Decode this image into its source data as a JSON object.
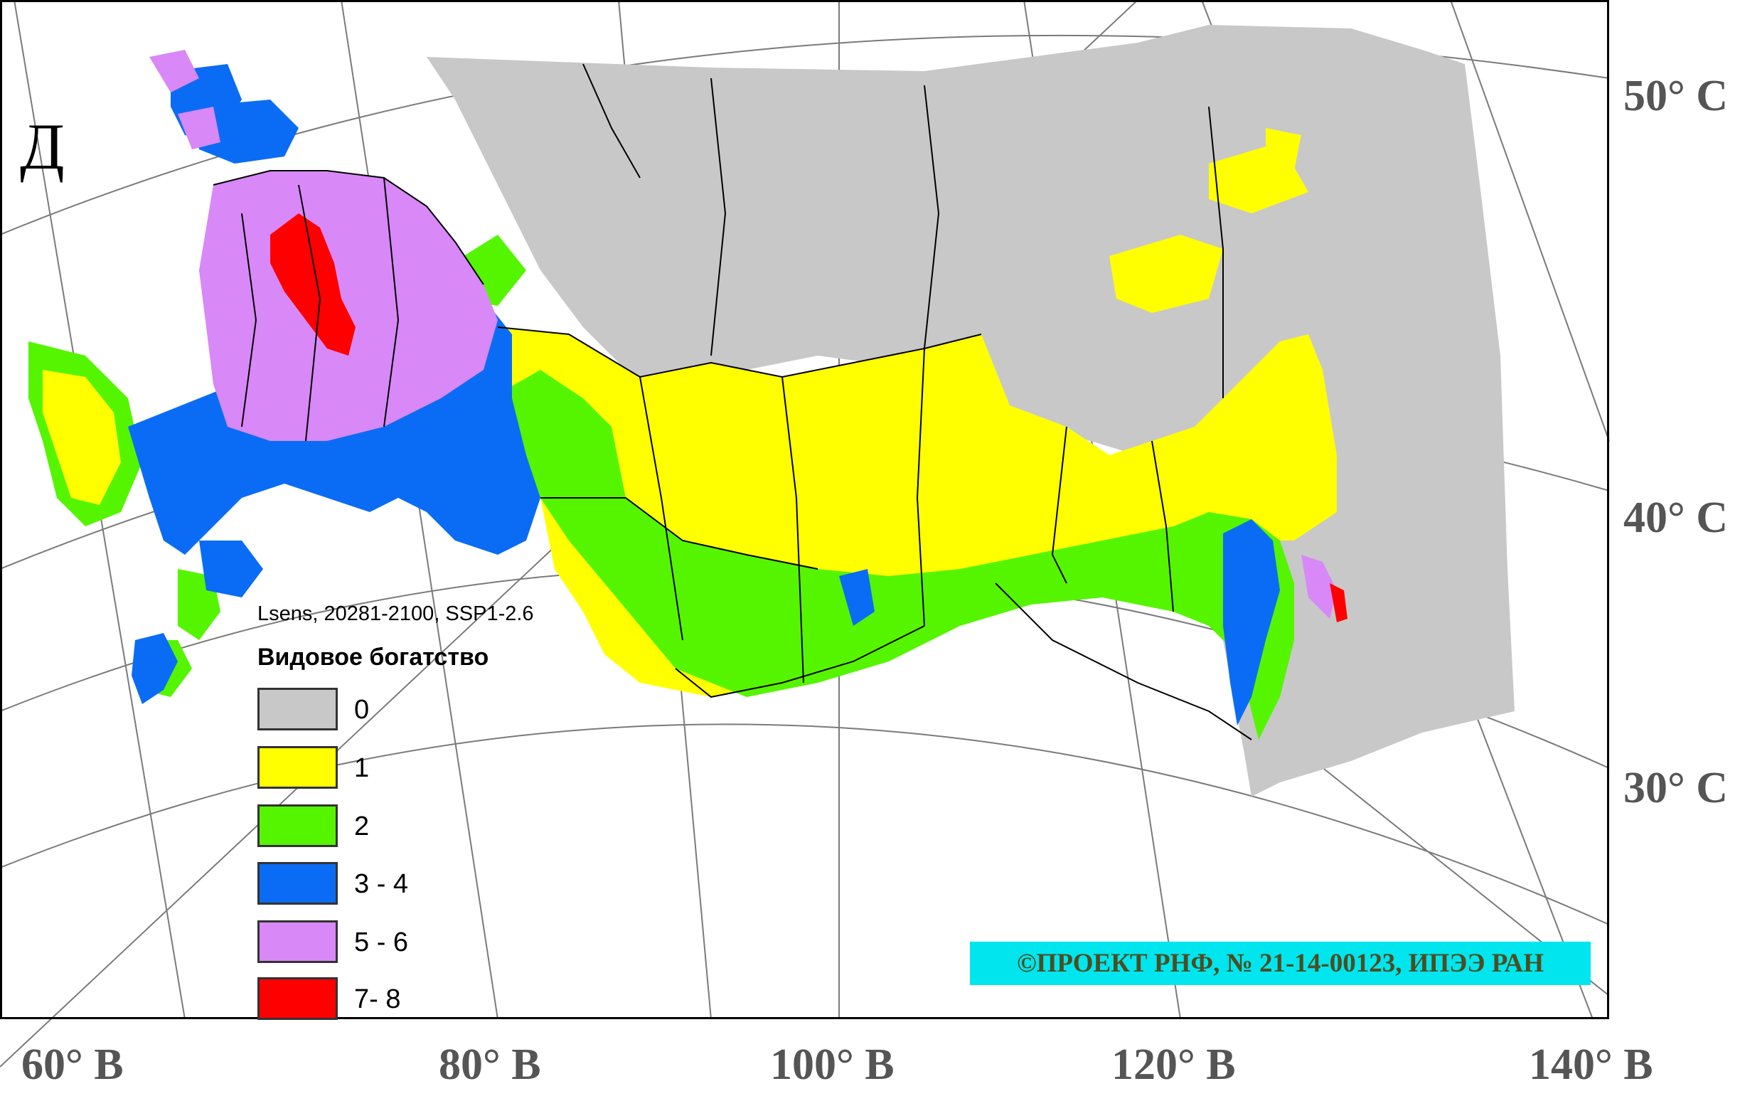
{
  "panel_letter": "Д",
  "legend": {
    "subtitle": "Lsens, 20281-2100, SSP1-2.6",
    "title": "Видовое богатство",
    "items": [
      {
        "label": "0",
        "color": "#c8c8c8"
      },
      {
        "label": "1",
        "color": "#ffff00"
      },
      {
        "label": "2",
        "color": "#55f500"
      },
      {
        "label": "3 - 4",
        "color": "#0a6cf5"
      },
      {
        "label": "5 - 6",
        "color": "#d888f7"
      },
      {
        "label": "7- 8",
        "color": "#ff0000"
      }
    ]
  },
  "latitude_labels": [
    "50° С",
    "40° С",
    "30° С"
  ],
  "longitude_labels": [
    "60° В",
    "80° В",
    "100° В",
    "120° В",
    "140° В"
  ],
  "copyright": "©ПРОЕКТ РНФ, № 21-14-00123, ИПЭЭ РАН",
  "colors": {
    "graticule": "#6e6e6e",
    "border": "#000000",
    "label_gray": "#555555",
    "copyright_bg": "#00e5ee"
  }
}
